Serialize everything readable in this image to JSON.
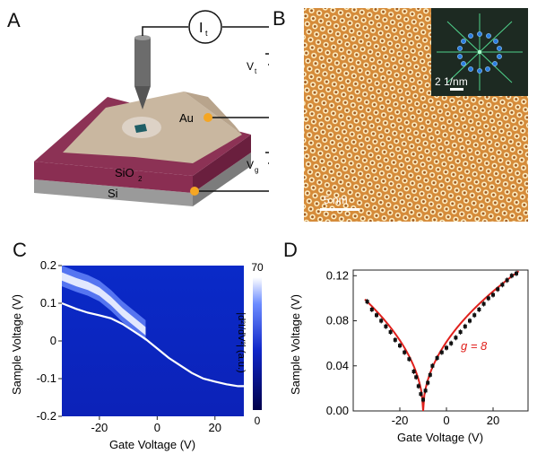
{
  "panels": {
    "a": {
      "letter": "A",
      "current": "I",
      "current_sub": "t",
      "vt": "V",
      "vt_sub": "t",
      "vg": "V",
      "vg_sub": "g",
      "au": "Au",
      "sio2": "SiO",
      "sio2_sub": "2",
      "si": "Si"
    },
    "b": {
      "letter": "B",
      "scale_bar": "5 nm",
      "fft_scale": "2 1/nm"
    },
    "c": {
      "letter": "C",
      "xlabel": "Gate Voltage (V)",
      "ylabel": "Sample Voltage (V)",
      "colorbar_label": "|d²I/dV²| (a.u.)",
      "colorbar_max": "70",
      "colorbar_min": "0"
    },
    "d": {
      "letter": "D",
      "xlabel": "Gate Voltage (V)",
      "ylabel": "Sample Voltage (V)",
      "annotation": "g = 8"
    }
  },
  "colors": {
    "fit_line": "#e0201c",
    "data_points": "#111111",
    "trace": "#ffffff",
    "map_low": "#000060",
    "map_high": "#ffffff",
    "stm_texture": "#d48a3c"
  },
  "chart_data": [
    {
      "panel": "C",
      "type": "heatmap",
      "xlabel": "Gate Voltage (V)",
      "ylabel": "Sample Voltage (V)",
      "xlim": [
        -33,
        30
      ],
      "ylim": [
        -0.2,
        0.2
      ],
      "xticks": [
        -20,
        0,
        20
      ],
      "yticks": [
        0.2,
        0.1,
        0.0,
        -0.1,
        -0.2
      ],
      "xtick_labels": [
        "-20",
        "0",
        "20"
      ],
      "ytick_labels": [
        "0.2",
        "0.1",
        "0",
        "-0.1",
        "-0.2"
      ],
      "colorbar": {
        "min": 0,
        "max": 70,
        "label": "|d²I/dV²| (a.u.)"
      },
      "trace": {
        "x": [
          -33,
          -28,
          -24,
          -20,
          -16,
          -12,
          -8,
          -4,
          0,
          4,
          8,
          12,
          16,
          20,
          24,
          28,
          30
        ],
        "y": [
          0.1,
          0.085,
          0.075,
          0.068,
          0.06,
          0.045,
          0.025,
          0.005,
          -0.02,
          -0.045,
          -0.065,
          -0.085,
          -0.1,
          -0.108,
          -0.115,
          -0.12,
          -0.12
        ]
      },
      "bright_band": {
        "x": [
          -33,
          -28,
          -24,
          -20,
          -16,
          -12,
          -8,
          -4
        ],
        "y": [
          0.17,
          0.155,
          0.145,
          0.13,
          0.105,
          0.075,
          0.05,
          0.025
        ]
      }
    },
    {
      "panel": "D",
      "type": "scatter",
      "xlabel": "Gate Voltage (V)",
      "ylabel": "Sample Voltage (V)",
      "xlim": [
        -40,
        35
      ],
      "ylim": [
        0.0,
        0.125
      ],
      "xticks": [
        -20,
        0,
        20
      ],
      "yticks": [
        0.0,
        0.04,
        0.08,
        0.12
      ],
      "xtick_labels": [
        "-20",
        "0",
        "20"
      ],
      "ytick_labels": [
        "0.00",
        "0.04",
        "0.08",
        "0.12"
      ],
      "series": [
        {
          "x": [
            -34,
            -32,
            -30,
            -28,
            -26,
            -24,
            -22,
            -20,
            -18,
            -16,
            -14,
            -13,
            -12,
            -11,
            -10,
            -9,
            -8,
            -7,
            -6,
            -4,
            -2,
            0,
            2,
            4,
            6,
            8,
            10,
            12,
            14,
            16,
            18,
            20,
            22,
            24,
            26,
            28,
            30
          ],
          "y": [
            0.097,
            0.09,
            0.085,
            0.08,
            0.075,
            0.07,
            0.063,
            0.058,
            0.052,
            0.046,
            0.035,
            0.03,
            0.022,
            0.015,
            0.01,
            0.018,
            0.025,
            0.032,
            0.04,
            0.047,
            0.052,
            0.056,
            0.06,
            0.065,
            0.07,
            0.075,
            0.08,
            0.085,
            0.09,
            0.095,
            0.1,
            0.103,
            0.108,
            0.112,
            0.116,
            0.12,
            0.122
          ]
        }
      ],
      "fit": {
        "x0": -10,
        "y0": 0.0
      }
    }
  ]
}
